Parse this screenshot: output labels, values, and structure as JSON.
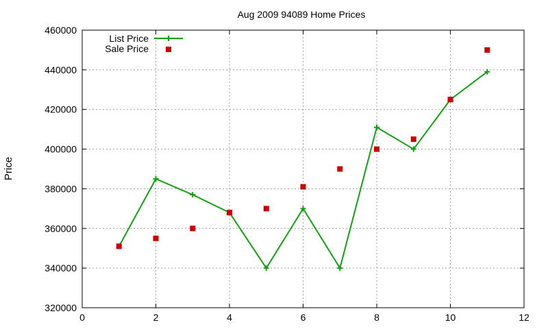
{
  "chart_data": {
    "type": "line",
    "title": "Aug 2009 94089 Home Prices",
    "xlabel": "",
    "ylabel": "Price",
    "xlim": [
      0,
      12
    ],
    "ylim": [
      320000,
      460000
    ],
    "xticks": [
      "0",
      "2",
      "4",
      "6",
      "8",
      "10",
      "12"
    ],
    "yticks": [
      "320000",
      "340000",
      "360000",
      "380000",
      "400000",
      "420000",
      "440000",
      "460000"
    ],
    "grid": true,
    "legend_position": "top-left",
    "series": [
      {
        "name": "List Price",
        "style": "line-with-plus-markers",
        "color": "#11a011",
        "x": [
          1,
          2,
          3,
          4,
          5,
          6,
          7,
          8,
          9,
          10,
          11
        ],
        "y": [
          351000,
          385000,
          377000,
          368000,
          340000,
          370000,
          340000,
          411000,
          400000,
          425000,
          439000
        ]
      },
      {
        "name": "Sale Price",
        "style": "square-markers",
        "color": "#cc0000",
        "x": [
          1,
          2,
          3,
          4,
          5,
          6,
          7,
          8,
          9,
          10,
          11
        ],
        "y": [
          351000,
          355000,
          360000,
          368000,
          370000,
          381000,
          390000,
          400000,
          405000,
          425000,
          450000
        ]
      }
    ]
  }
}
